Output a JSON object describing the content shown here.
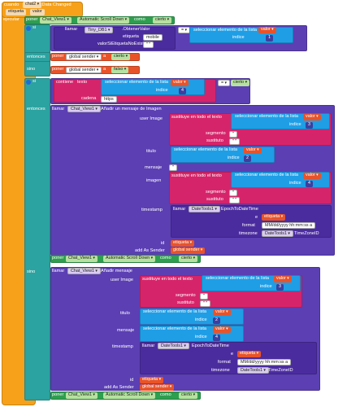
{
  "event": {
    "when": "cuando",
    "component": "chat2",
    "event_name": ".Data Changed",
    "param_tag": "etiqueta",
    "param_value": "valor",
    "do": "ejecutar"
  },
  "set1": {
    "set": "poner",
    "component": "Chat_View1",
    "prop": "Automatic Scroll Down",
    "to": "como",
    "value": "cierto"
  },
  "if1": {
    "si": "si",
    "call": "llamar",
    "component": "Tiny_DB1",
    "method": ".ObtenerValor",
    "etiqueta": "etiqueta",
    "mobile": "mobile",
    "valor": "valorSiEtiquetaNoExiste",
    "eq": "=",
    "select": "seleccionar elemento de la lista",
    "take": "tomar",
    "valor_var": "valor",
    "indice": "indice",
    "num1": "1"
  },
  "then1": {
    "label": "entonces",
    "set": "poner",
    "var": "global sender",
    "a": "a",
    "value": "cierto"
  },
  "else1": {
    "label": "sino",
    "set": "poner",
    "var": "global sender",
    "a": "a",
    "value": "falso"
  },
  "if2": {
    "si": "si",
    "contains": "contiene",
    "texto": "texto",
    "select": "seleccionar elemento de la lista",
    "take": "tomar",
    "valor_var": "valor",
    "indice": "indice",
    "num4": "4",
    "cadena": "cadena",
    "https": "https",
    "eq": "=",
    "cierto": "cierto"
  },
  "then2": {
    "label": "entonces",
    "call": "llamar",
    "component": "Chat_View1",
    "method": "Añadir un mensaje de Imagen",
    "userImage": "user Image",
    "replace": "sustituye en todo el texto",
    "segmento": "segmento",
    "sustituto": "sustituto",
    "quote": "\"",
    "empty": "\"  \"",
    "select": "seleccionar elemento de la lista",
    "take": "tomar",
    "valor_var": "valor",
    "indice": "indice",
    "num3": "3",
    "num2": "2",
    "num4": "4",
    "titulo": "titulo",
    "mensaje": "mensaje",
    "imagen": "imagen",
    "timestamp": "timestamp",
    "epoch": "EpochToDateTime",
    "dateTools": "DateTools1",
    "e": "e",
    "etiqueta": "etiqueta",
    "format": "format",
    "formatValue": "MM/dd/yyyy hh:mm:ss a",
    "timezone": "timezone",
    "tzid": "TimeZoneID",
    "id": "id",
    "addAsSender": "add As Sender",
    "globalSender": "global sender",
    "set": "poner",
    "chatView": "Chat_View1",
    "prop": "Automatic Scroll Down",
    "como": "como",
    "cierto": "cierto"
  },
  "else2": {
    "label": "sino",
    "call": "llamar",
    "component": "Chat_View1",
    "method": "Añadir mensaje",
    "userImage": "user Image",
    "replace": "sustituye en todo el texto",
    "segmento": "segmento",
    "sustituto": "sustituto",
    "quote": "\"",
    "empty": "\"  \"",
    "select": "seleccionar elemento de la lista",
    "take": "tomar",
    "valor_var": "valor",
    "indice": "indice",
    "num3": "3",
    "num2": "2",
    "num4": "4",
    "titulo": "titulo",
    "mensaje": "mensaje",
    "timestamp": "timestamp",
    "epoch": "EpochToDateTime",
    "dateTools": "DateTools1",
    "e": "e",
    "etiqueta": "etiqueta",
    "format": "format",
    "formatValue": "MM/dd/yyyy hh:mm:ss a",
    "timezone": "timezone",
    "tzid": "TimeZoneID",
    "id": "id",
    "addAsSender": "add As Sender",
    "globalSender": "global sender",
    "set": "poner",
    "chatView": "Chat_View1",
    "prop": "Automatic Scroll Down",
    "como": "como",
    "cierto": "cierto"
  }
}
